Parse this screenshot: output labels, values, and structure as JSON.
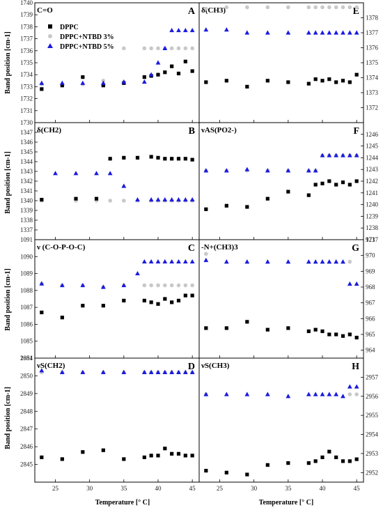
{
  "legend": {
    "entries": [
      "DPPC",
      "DPPC+NTBD 3%",
      "DPPC+NTBD 5%"
    ],
    "placement": "top-left of panel A"
  },
  "axis_labels": {
    "ylabel_left": "Band position [cm-1]",
    "xlabel": "Temperature [° C]"
  },
  "colors": {
    "DPPC": "#000000",
    "DPPC+NTBD 3%": "#c8c8c8",
    "DPPC+NTBD 5%": "#1a1adf"
  },
  "chart_data": [
    {
      "type": "scatter",
      "id": "A",
      "letter": "A",
      "title": "C=O",
      "xlim": [
        22,
        46
      ],
      "ylim": [
        1730,
        1740
      ],
      "yticks": [
        1730,
        1731,
        1732,
        1733,
        1734,
        1735,
        1736,
        1737,
        1738,
        1739,
        1740
      ],
      "xticks": [
        25,
        30,
        35,
        40,
        45
      ],
      "series": [
        {
          "name": "DPPC",
          "x": [
            23,
            26,
            29,
            32,
            35,
            38,
            39,
            40,
            41,
            42,
            43,
            44,
            45
          ],
          "y": [
            1732.8,
            1733.1,
            1733.8,
            1733.1,
            1733.3,
            1733.8,
            1733.9,
            1734.0,
            1734.2,
            1734.7,
            1734.1,
            1735.1,
            1734.3
          ]
        },
        {
          "name": "DPPC+NTBD 3%",
          "x": [
            23,
            26,
            29,
            32,
            35,
            38,
            39,
            40,
            41,
            42,
            43,
            44,
            45
          ],
          "y": [
            1733.2,
            1733.2,
            1733.2,
            1733.5,
            1736.2,
            1736.2,
            1736.2,
            1736.2,
            1736.2,
            1736.2,
            1736.2,
            1736.2,
            1736.2
          ]
        },
        {
          "name": "DPPC+NTBD 5%",
          "x": [
            23,
            26,
            29,
            32,
            35,
            38,
            39,
            40,
            41,
            42,
            43,
            44,
            45
          ],
          "y": [
            1733.3,
            1733.3,
            1733.3,
            1733.3,
            1733.4,
            1733.4,
            1734.0,
            1735.0,
            1736.2,
            1737.7,
            1737.7,
            1737.7,
            1737.7
          ]
        }
      ]
    },
    {
      "type": "scatter",
      "id": "E",
      "letter": "E",
      "title": "δ(CH3)",
      "xlim": [
        22,
        46
      ],
      "ylim": [
        1371,
        1379
      ],
      "yticks": [
        1372,
        1373,
        1374,
        1375,
        1376,
        1377,
        1378
      ],
      "xticks": [
        25,
        30,
        35,
        40,
        45
      ],
      "series": [
        {
          "name": "DPPC",
          "x": [
            23,
            26,
            29,
            32,
            35,
            38,
            39,
            40,
            41,
            42,
            43,
            44,
            45
          ],
          "y": [
            1373.7,
            1373.8,
            1373.4,
            1373.8,
            1373.7,
            1373.6,
            1373.9,
            1373.8,
            1373.9,
            1373.7,
            1373.8,
            1373.7,
            1374.2
          ]
        },
        {
          "name": "DPPC+NTBD 3%",
          "x": [
            23,
            26,
            29,
            32,
            35,
            38,
            39,
            40,
            41,
            42,
            43,
            44,
            45
          ],
          "y": [
            1378.6,
            1378.7,
            1378.7,
            1378.7,
            1378.7,
            1378.7,
            1378.7,
            1378.7,
            1378.7,
            1378.7,
            1378.7,
            1378.7,
            1378.7
          ]
        },
        {
          "name": "DPPC+NTBD 5%",
          "x": [
            23,
            26,
            29,
            32,
            35,
            38,
            39,
            40,
            41,
            42,
            43,
            44,
            45
          ],
          "y": [
            1377.2,
            1377.2,
            1377.0,
            1377.0,
            1377.0,
            1377.0,
            1377.0,
            1377.0,
            1377.0,
            1377.0,
            1377.0,
            1377.0,
            1377.0
          ]
        }
      ]
    },
    {
      "type": "scatter",
      "id": "B",
      "letter": "B",
      "title": "δ(CH2)",
      "xlim": [
        22,
        46
      ],
      "ylim": [
        1336,
        1348
      ],
      "yticks": [
        1337,
        1338,
        1339,
        1340,
        1341,
        1342,
        1343,
        1344,
        1345,
        1346,
        1347
      ],
      "xticks": [
        25,
        30,
        35,
        40,
        45
      ],
      "series": [
        {
          "name": "DPPC",
          "x": [
            23,
            28,
            31,
            33,
            35,
            37,
            39,
            40,
            41,
            42,
            43,
            44,
            45
          ],
          "y": [
            1340.1,
            1340.2,
            1340.2,
            1344.3,
            1344.4,
            1344.4,
            1344.5,
            1344.4,
            1344.3,
            1344.3,
            1344.3,
            1344.3,
            1344.2
          ]
        },
        {
          "name": "DPPC+NTBD 3%",
          "x": [
            23,
            28,
            31,
            33,
            35,
            37,
            39,
            40,
            41,
            42,
            43,
            44,
            45
          ],
          "y": [
            1340.0,
            1340.0,
            1340.0,
            1340.0,
            1340.0,
            1340.0,
            1340.0,
            1340.0,
            1340.0,
            1340.0,
            1340.0,
            1340.0,
            1340.0
          ]
        },
        {
          "name": "DPPC+NTBD 5%",
          "x": [
            25,
            28,
            31,
            33,
            35,
            37,
            39,
            40,
            41,
            42,
            43,
            44,
            45
          ],
          "y": [
            1342.8,
            1342.8,
            1342.8,
            1342.8,
            1341.5,
            1340.1,
            1340.1,
            1340.1,
            1340.1,
            1340.1,
            1340.1,
            1340.1,
            1340.1
          ]
        }
      ]
    },
    {
      "type": "scatter",
      "id": "F",
      "letter": "F",
      "title": "νAS(PO2-)",
      "xlim": [
        22,
        46
      ],
      "ylim": [
        1237,
        1247
      ],
      "yticks": [
        1237,
        1238,
        1239,
        1240,
        1241,
        1242,
        1243,
        1244,
        1245,
        1246
      ],
      "xticks": [
        25,
        30,
        35,
        40,
        45
      ],
      "series": [
        {
          "name": "DPPC",
          "x": [
            23,
            26,
            29,
            32,
            35,
            38,
            39,
            40,
            41,
            42,
            43,
            44,
            45
          ],
          "y": [
            1239.6,
            1239.9,
            1239.8,
            1240.5,
            1241.1,
            1240.8,
            1241.7,
            1241.8,
            1242.0,
            1241.7,
            1241.9,
            1241.7,
            1242.0
          ]
        },
        {
          "name": "DPPC+NTBD 3%",
          "x": [
            23,
            26,
            29,
            32,
            35,
            38,
            39,
            40,
            41,
            42,
            43,
            44,
            45
          ],
          "y": [
            1242.9,
            1242.9,
            1242.9,
            1242.9,
            1242.9,
            1242.9,
            1242.9,
            1244.2,
            1244.2,
            1244.2,
            1244.2,
            1244.2,
            1244.2
          ]
        },
        {
          "name": "DPPC+NTBD 5%",
          "x": [
            23,
            26,
            29,
            32,
            35,
            38,
            39,
            40,
            41,
            42,
            43,
            44,
            45
          ],
          "y": [
            1242.9,
            1242.9,
            1243.0,
            1242.9,
            1242.9,
            1242.9,
            1242.9,
            1244.2,
            1244.2,
            1244.2,
            1244.2,
            1244.2,
            1244.2
          ]
        }
      ]
    },
    {
      "type": "scatter",
      "id": "C",
      "letter": "C",
      "title": "ν (C-O-P-O-C)",
      "xlim": [
        22,
        46
      ],
      "ylim": [
        1084,
        1091
      ],
      "yticks": [
        1084,
        1085,
        1086,
        1087,
        1088,
        1089,
        1090,
        1091
      ],
      "xticks": [
        25,
        30,
        35,
        40,
        45
      ],
      "series": [
        {
          "name": "DPPC",
          "x": [
            23,
            26,
            29,
            32,
            35,
            38,
            39,
            40,
            41,
            42,
            43,
            44,
            45
          ],
          "y": [
            1086.7,
            1086.4,
            1087.1,
            1087.1,
            1087.4,
            1087.4,
            1087.3,
            1087.2,
            1087.5,
            1087.3,
            1087.4,
            1087.7,
            1087.7
          ]
        },
        {
          "name": "DPPC+NTBD 3%",
          "x": [
            23,
            26,
            29,
            32,
            35,
            38,
            39,
            40,
            41,
            42,
            43,
            44,
            45
          ],
          "y": [
            1088.4,
            1088.3,
            1088.3,
            1088.2,
            1088.3,
            1088.3,
            1088.3,
            1088.3,
            1088.3,
            1088.3,
            1088.3,
            1088.3,
            1088.3
          ]
        },
        {
          "name": "DPPC+NTBD 5%",
          "x": [
            23,
            26,
            29,
            32,
            35,
            37,
            38,
            39,
            40,
            41,
            42,
            43,
            44,
            45
          ],
          "y": [
            1088.4,
            1088.3,
            1088.3,
            1088.2,
            1088.3,
            1089.0,
            1089.7,
            1089.7,
            1089.7,
            1089.7,
            1089.7,
            1089.7,
            1089.7,
            1089.7
          ]
        }
      ]
    },
    {
      "type": "scatter",
      "id": "G",
      "letter": "G",
      "title": "-N+(CH3)3",
      "xlim": [
        22,
        46
      ],
      "ylim": [
        963.5,
        971
      ],
      "yticks": [
        964,
        965,
        966,
        967,
        968,
        969,
        970,
        971
      ],
      "xticks": [
        25,
        30,
        35,
        40,
        45
      ],
      "series": [
        {
          "name": "DPPC",
          "x": [
            23,
            26,
            29,
            32,
            35,
            38,
            39,
            40,
            41,
            42,
            43,
            44,
            45
          ],
          "y": [
            965.4,
            965.4,
            965.8,
            965.3,
            965.4,
            965.2,
            965.3,
            965.2,
            965.0,
            965.0,
            964.9,
            965.0,
            964.8
          ]
        },
        {
          "name": "DPPC+NTBD 3%",
          "x": [
            23,
            44
          ],
          "y": [
            970.1,
            969.6
          ]
        },
        {
          "name": "DPPC+NTBD 5%",
          "x": [
            23,
            26,
            29,
            32,
            35,
            38,
            39,
            40,
            41,
            42,
            43,
            44,
            45
          ],
          "y": [
            969.7,
            969.6,
            969.6,
            969.6,
            969.6,
            969.6,
            969.6,
            969.6,
            969.6,
            969.6,
            969.6,
            968.2,
            968.2
          ]
        }
      ]
    },
    {
      "type": "scatter",
      "id": "D",
      "letter": "D",
      "title": "νS(CH2)",
      "xlim": [
        22,
        46
      ],
      "ylim": [
        2844,
        2851
      ],
      "yticks": [
        2845,
        2846,
        2847,
        2848,
        2849,
        2850,
        2851
      ],
      "xticks": [
        25,
        30,
        35,
        40,
        45
      ],
      "series": [
        {
          "name": "DPPC",
          "x": [
            23,
            26,
            29,
            32,
            35,
            38,
            39,
            40,
            41,
            42,
            43,
            44,
            45
          ],
          "y": [
            2845.4,
            2845.3,
            2845.7,
            2845.8,
            2845.3,
            2845.4,
            2845.5,
            2845.5,
            2845.9,
            2845.6,
            2845.6,
            2845.5,
            2845.5
          ]
        },
        {
          "name": "DPPC+NTBD 3%",
          "x": [
            23,
            26,
            29,
            32,
            35,
            38,
            39,
            40,
            41,
            42,
            43,
            44,
            45
          ],
          "y": [
            2850.2,
            2850.2,
            2850.2,
            2850.2,
            2850.2,
            2850.2,
            2850.2,
            2850.2,
            2850.2,
            2850.2,
            2850.2,
            2850.2,
            2850.2
          ]
        },
        {
          "name": "DPPC+NTBD 5%",
          "x": [
            23,
            26,
            29,
            32,
            35,
            38,
            39,
            40,
            41,
            42,
            43,
            44,
            45
          ],
          "y": [
            2850.3,
            2850.2,
            2850.2,
            2850.2,
            2850.2,
            2850.2,
            2850.2,
            2850.2,
            2850.2,
            2850.2,
            2850.2,
            2850.2,
            2850.2
          ]
        }
      ]
    },
    {
      "type": "scatter",
      "id": "H",
      "letter": "H",
      "title": "νS(CH3)",
      "xlim": [
        22,
        46
      ],
      "ylim": [
        2951.5,
        2958
      ],
      "yticks": [
        2952,
        2953,
        2954,
        2955,
        2956,
        2957
      ],
      "xticks": [
        25,
        30,
        35,
        40,
        45
      ],
      "series": [
        {
          "name": "DPPC",
          "x": [
            23,
            26,
            29,
            32,
            35,
            38,
            39,
            40,
            41,
            42,
            43,
            44,
            45
          ],
          "y": [
            2952.1,
            2952.0,
            2951.9,
            2952.4,
            2952.5,
            2952.5,
            2952.6,
            2952.8,
            2953.1,
            2952.8,
            2952.6,
            2952.6,
            2952.7
          ]
        },
        {
          "name": "DPPC+NTBD 3%",
          "x": [
            23,
            44,
            45
          ],
          "y": [
            2956.1,
            2956.1,
            2956.1
          ]
        },
        {
          "name": "DPPC+NTBD 5%",
          "x": [
            23,
            26,
            29,
            32,
            35,
            38,
            39,
            40,
            41,
            42,
            43,
            44,
            45
          ],
          "y": [
            2956.1,
            2956.1,
            2956.1,
            2956.1,
            2956.0,
            2956.1,
            2956.1,
            2956.1,
            2956.1,
            2956.1,
            2956.0,
            2956.5,
            2956.5
          ]
        }
      ]
    }
  ]
}
